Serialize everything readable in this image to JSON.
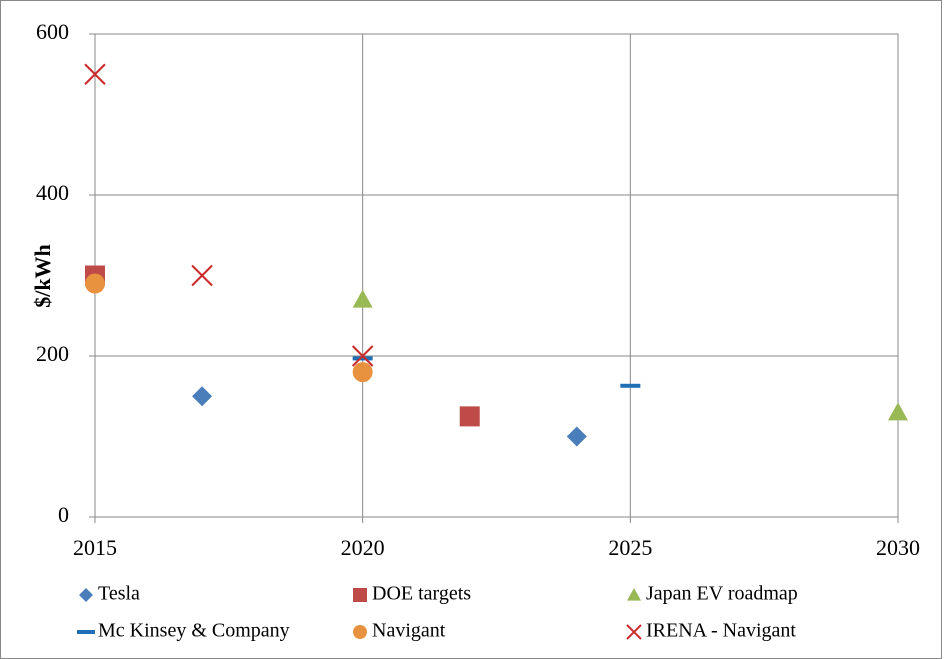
{
  "chart_data": {
    "type": "scatter",
    "ylabel": "$/kWh",
    "xlim": [
      2015,
      2030
    ],
    "xticks": [
      2015,
      2020,
      2025,
      2030
    ],
    "ylim": [
      0,
      600
    ],
    "yticks": [
      0,
      200,
      400,
      600
    ],
    "grid": true,
    "legend": "bottom",
    "series": [
      {
        "name": "Tesla",
        "color": "#4a7ebb",
        "marker": "diamond",
        "x": [
          2017,
          2024
        ],
        "values": [
          150,
          100
        ]
      },
      {
        "name": "DOE targets",
        "color": "#be4b48",
        "marker": "square",
        "x": [
          2015,
          2022
        ],
        "values": [
          300,
          125
        ]
      },
      {
        "name": "Japan EV roadmap",
        "color": "#98b954",
        "marker": "triangle",
        "x": [
          2020,
          2030
        ],
        "values": [
          270,
          130
        ]
      },
      {
        "name": "Mc Kinsey & Company",
        "color": "#1f6fb5",
        "marker": "dash",
        "x": [
          2020,
          2025
        ],
        "values": [
          197,
          163
        ]
      },
      {
        "name": "Navigant",
        "color": "#e8913f",
        "marker": "circle",
        "x": [
          2015,
          2020
        ],
        "values": [
          290,
          180
        ]
      },
      {
        "name": "IRENA - Navigant",
        "color": "#cc2a2a",
        "marker": "x",
        "x": [
          2015,
          2017,
          2020
        ],
        "values": [
          550,
          300,
          200
        ]
      }
    ]
  }
}
